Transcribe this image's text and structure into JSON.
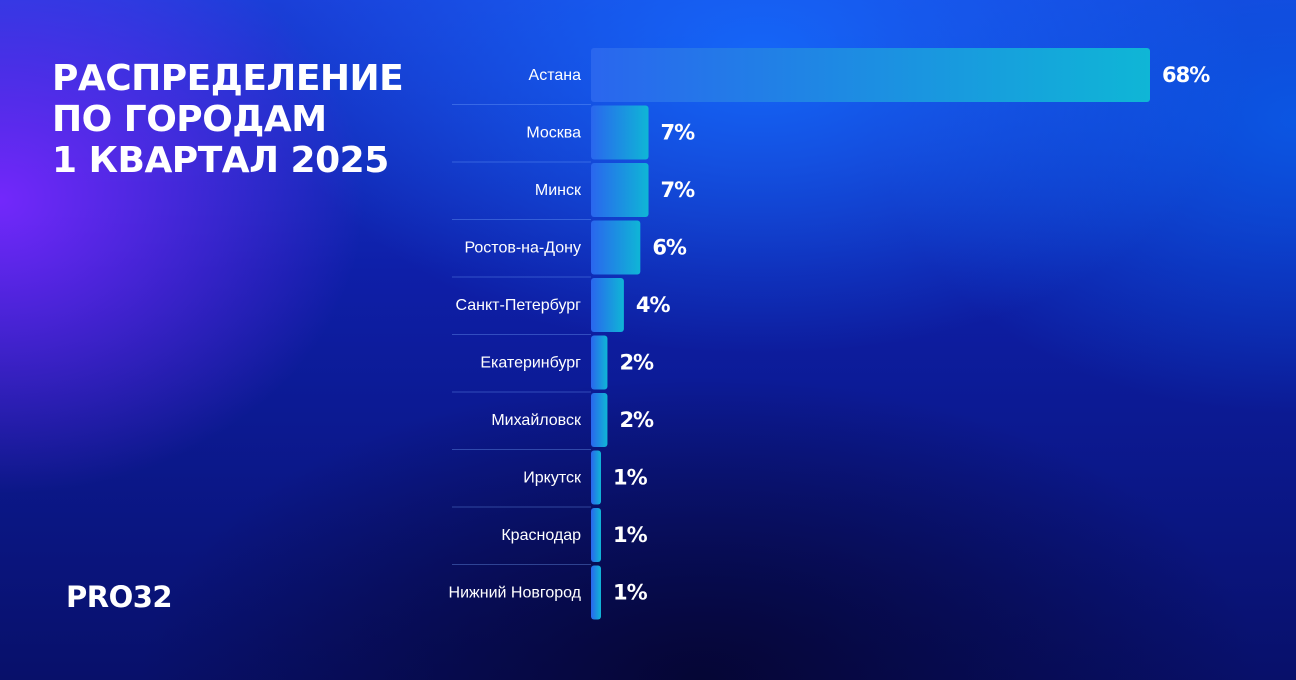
{
  "title_lines": [
    "РАСПРЕДЕЛЕНИЕ",
    "ПО ГОРОДАМ",
    "1 КВАРТАЛ 2025"
  ],
  "logo_text": "PRO32",
  "colors": {
    "bar_start": "#2a66ee",
    "bar_end": "#0fb6d6",
    "text": "#ffffff"
  },
  "chart_data": {
    "type": "bar",
    "orientation": "horizontal",
    "title": "РАСПРЕДЕЛЕНИЕ ПО ГОРОДАМ 1 КВАРТАЛ 2025",
    "categories": [
      "Астана",
      "Москва",
      "Минск",
      "Ростов-на-Дону",
      "Санкт-Петербург",
      "Екатеринбург",
      "Михайловск",
      "Иркутск",
      "Краснодар",
      "Нижний Новгород"
    ],
    "values": [
      68,
      7,
      7,
      6,
      4,
      2,
      2,
      1,
      1,
      1
    ],
    "value_labels": [
      "68%",
      "7%",
      "7%",
      "6%",
      "4%",
      "2%",
      "2%",
      "1%",
      "1%",
      "1%"
    ],
    "unit": "%",
    "xlim": [
      0,
      68
    ],
    "grid": false,
    "legend": "none"
  }
}
